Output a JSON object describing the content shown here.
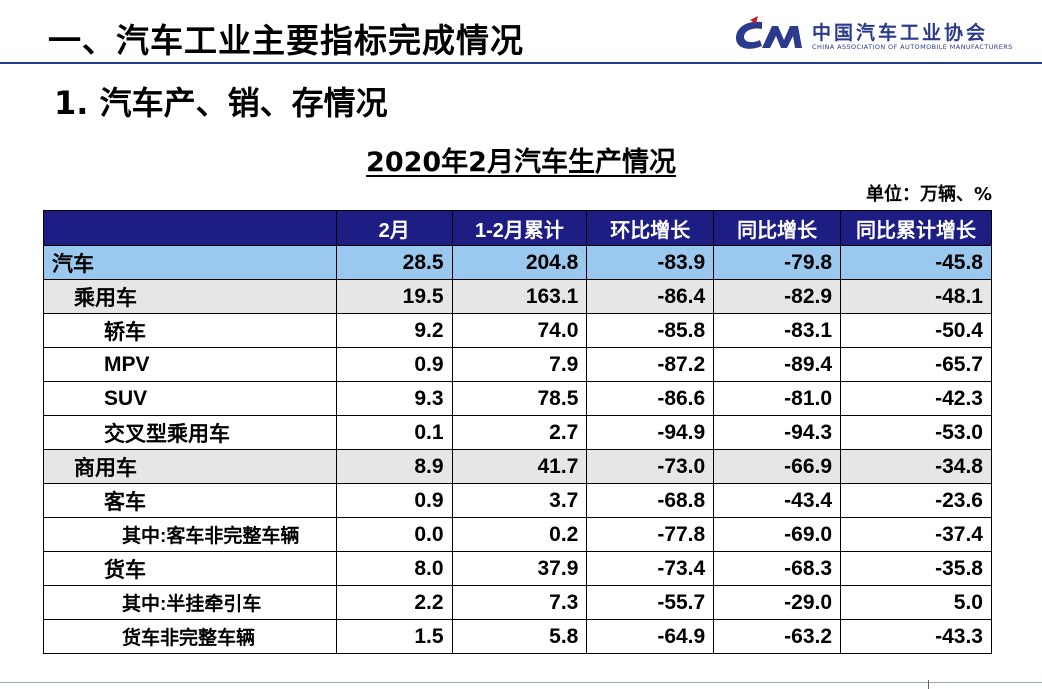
{
  "header": {
    "section_title": "一、汽车工业主要指标完成情况",
    "logo_cn": "中国汽车工业协会",
    "logo_en": "CHINA ASSOCIATION OF AUTOMOBILE MANUFACTURERS",
    "brand_color": "#2a3a8c"
  },
  "subtitle": "1. 汽车产、销、存情况",
  "table_title": "2020年2月汽车生产情况",
  "unit": "单位：万辆、%",
  "columns": [
    "",
    "2月",
    "1-2月累计",
    "环比增长",
    "同比增长",
    "同比累计增长"
  ],
  "rows": [
    {
      "level": 0,
      "name": "汽车",
      "values": [
        "28.5",
        "204.8",
        "-83.9",
        "-79.8",
        "-45.8"
      ]
    },
    {
      "level": 1,
      "name": "乘用车",
      "values": [
        "19.5",
        "163.1",
        "-86.4",
        "-82.9",
        "-48.1"
      ]
    },
    {
      "level": 2,
      "name": "轿车",
      "values": [
        "9.2",
        "74.0",
        "-85.8",
        "-83.1",
        "-50.4"
      ]
    },
    {
      "level": 2,
      "name": "MPV",
      "values": [
        "0.9",
        "7.9",
        "-87.2",
        "-89.4",
        "-65.7"
      ]
    },
    {
      "level": 2,
      "name": "SUV",
      "values": [
        "9.3",
        "78.5",
        "-86.6",
        "-81.0",
        "-42.3"
      ]
    },
    {
      "level": 2,
      "name": "交叉型乘用车",
      "values": [
        "0.1",
        "2.7",
        "-94.9",
        "-94.3",
        "-53.0"
      ]
    },
    {
      "level": 1,
      "name": "商用车",
      "values": [
        "8.9",
        "41.7",
        "-73.0",
        "-66.9",
        "-34.8"
      ]
    },
    {
      "level": 2,
      "name": "客车",
      "values": [
        "0.9",
        "3.7",
        "-68.8",
        "-43.4",
        "-23.6"
      ]
    },
    {
      "level": 3,
      "name": "其中:客车非完整车辆",
      "values": [
        "0.0",
        "0.2",
        "-77.8",
        "-69.0",
        "-37.4"
      ]
    },
    {
      "level": 2,
      "name": "货车",
      "values": [
        "8.0",
        "37.9",
        "-73.4",
        "-68.3",
        "-35.8"
      ]
    },
    {
      "level": 3,
      "name": "其中:半挂牵引车",
      "values": [
        "2.2",
        "7.3",
        "-55.7",
        "-29.0",
        "5.0"
      ]
    },
    {
      "level": 3,
      "name": "货车非完整车辆",
      "values": [
        "1.5",
        "5.8",
        "-64.9",
        "-63.2",
        "-43.3"
      ]
    }
  ]
}
